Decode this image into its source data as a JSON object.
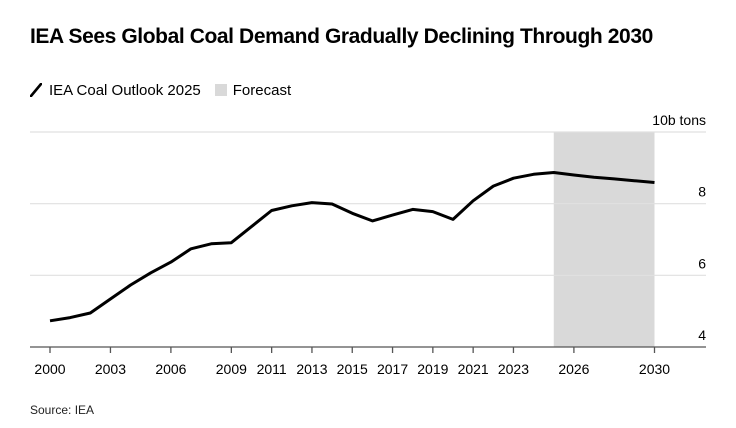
{
  "chart_data": {
    "type": "line",
    "title": "IEA Sees Global Coal Demand Gradually Declining Through 2030",
    "xlabel": "",
    "ylabel": "",
    "y_unit_label": "10b tons",
    "ylim": [
      4,
      10
    ],
    "yticks": [
      4,
      6,
      8,
      10
    ],
    "ytick_labels": [
      "4",
      "6",
      "8",
      "10b tons"
    ],
    "xlim": [
      2000,
      2032.5
    ],
    "xticks": [
      2000,
      2003,
      2006,
      2009,
      2011,
      2013,
      2015,
      2017,
      2019,
      2021,
      2023,
      2026,
      2030
    ],
    "xtick_labels": [
      "2000",
      "2003",
      "2006",
      "2009",
      "2011",
      "2013",
      "2015",
      "2017",
      "2019",
      "2021",
      "2023",
      "2026",
      "2030"
    ],
    "grid": true,
    "legend_position": "top-left",
    "forecast_range": [
      2025,
      2030
    ],
    "series": [
      {
        "name": "IEA Coal Outlook 2025",
        "color": "#000000",
        "x": [
          2000,
          2001,
          2002,
          2003,
          2004,
          2005,
          2006,
          2007,
          2008,
          2009,
          2010,
          2011,
          2012,
          2013,
          2014,
          2015,
          2016,
          2017,
          2018,
          2019,
          2020,
          2021,
          2022,
          2023,
          2024,
          2025,
          2026,
          2027,
          2028,
          2029,
          2030
        ],
        "values": [
          4.73,
          4.82,
          4.95,
          5.34,
          5.73,
          6.07,
          6.37,
          6.74,
          6.88,
          6.91,
          7.36,
          7.81,
          7.94,
          8.03,
          7.99,
          7.73,
          7.52,
          7.68,
          7.84,
          7.78,
          7.56,
          8.08,
          8.49,
          8.71,
          8.82,
          8.87,
          8.8,
          8.74,
          8.69,
          8.64,
          8.59
        ]
      }
    ],
    "legend": [
      {
        "label": "IEA Coal Outlook 2025",
        "kind": "line",
        "color": "#000000"
      },
      {
        "label": "Forecast",
        "kind": "shaded-area",
        "color": "#d9d9d9"
      }
    ]
  },
  "header": {
    "title": "IEA Sees Global Coal Demand Gradually Declining Through 2030"
  },
  "legend": {
    "line_label": "IEA Coal Outlook 2025",
    "forecast_label": "Forecast"
  },
  "footer": {
    "source": "Source: IEA"
  },
  "colors": {
    "line": "#000000",
    "forecast": "#d9d9d9",
    "grid": "#e0e0e0",
    "axis": "#555555"
  }
}
